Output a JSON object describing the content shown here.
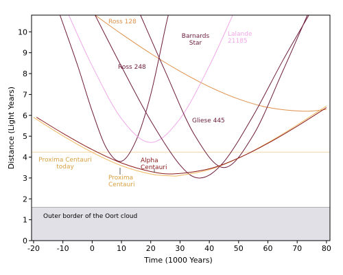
{
  "chart_data": {
    "type": "line",
    "x_label": "Time (1000 Years)",
    "y_label": "Distance (Light Years)",
    "xlim": [
      -20.7,
      81.2
    ],
    "ylim": [
      0,
      10.8
    ],
    "xticks": [
      -20,
      -10,
      0,
      10,
      20,
      30,
      40,
      50,
      60,
      70,
      80
    ],
    "yticks": [
      0,
      1,
      2,
      3,
      4,
      5,
      6,
      7,
      8,
      9,
      10
    ],
    "band": {
      "from": 0,
      "to": 1.6,
      "label": "Outer border of the Oort cloud",
      "color": "#e0e0e6"
    },
    "reference": {
      "value": 4.24,
      "label": [
        "Proxima Centauri",
        "today"
      ],
      "color": "#f5d5a0",
      "label_color": "#d8a040"
    },
    "series": [
      {
        "label": [
          "Ross 128"
        ],
        "color": "#e0904a",
        "x": [
          1,
          10,
          20,
          30,
          40,
          50,
          60,
          72,
          80
        ],
        "values": [
          10.8,
          9.9,
          8.96,
          8.11,
          7.37,
          6.78,
          6.38,
          6.2,
          6.28
        ]
      },
      {
        "label": [
          "Barnards",
          "Star"
        ],
        "color": "#6b1a3a",
        "x": [
          -11,
          -5,
          0,
          5,
          10,
          15,
          20,
          25,
          26
        ],
        "values": [
          10.8,
          8.4,
          6.2,
          4.4,
          3.8,
          4.8,
          7.0,
          10.2,
          10.8
        ]
      },
      {
        "label": [
          "Lalande",
          "21185"
        ],
        "color": "#f0a8e8",
        "x": [
          -8,
          0,
          10,
          20,
          30,
          40,
          48
        ],
        "values": [
          10.8,
          8.37,
          5.84,
          4.7,
          5.84,
          8.37,
          10.8
        ]
      },
      {
        "label": [
          "Ross 248"
        ],
        "color": "#6b1a3a",
        "x": [
          1,
          10,
          20,
          30,
          37,
          45,
          55,
          65,
          74
        ],
        "values": [
          10.8,
          8.34,
          5.74,
          3.62,
          3.0,
          3.78,
          5.99,
          8.6,
          10.8
        ]
      },
      {
        "label": [
          "Gliese 445"
        ],
        "color": "#6b1a3a",
        "x": [
          16.5,
          25,
          35,
          45,
          55,
          65,
          73.5
        ],
        "values": [
          10.8,
          8.09,
          5.05,
          3.5,
          5.05,
          8.09,
          10.8
        ]
      },
      {
        "label": [
          "Proxima",
          "Centauri"
        ],
        "color": "#f0b860",
        "label_color": "#d8a040",
        "x": [
          -20,
          -10,
          0,
          10,
          20,
          27,
          30,
          40,
          50,
          60,
          70,
          80
        ],
        "values": [
          5.9,
          5.02,
          4.23,
          3.59,
          3.19,
          3.1,
          3.12,
          3.4,
          3.95,
          4.69,
          5.54,
          6.45
        ]
      },
      {
        "label": [
          "Alpha",
          "Centauri"
        ],
        "color": "#8b1a1a",
        "x": [
          -19,
          -10,
          0,
          10,
          20,
          28,
          40,
          50,
          60,
          70,
          80
        ],
        "values": [
          5.91,
          5.14,
          4.36,
          3.72,
          3.31,
          3.2,
          3.44,
          3.96,
          4.66,
          5.48,
          6.37
        ]
      }
    ]
  }
}
